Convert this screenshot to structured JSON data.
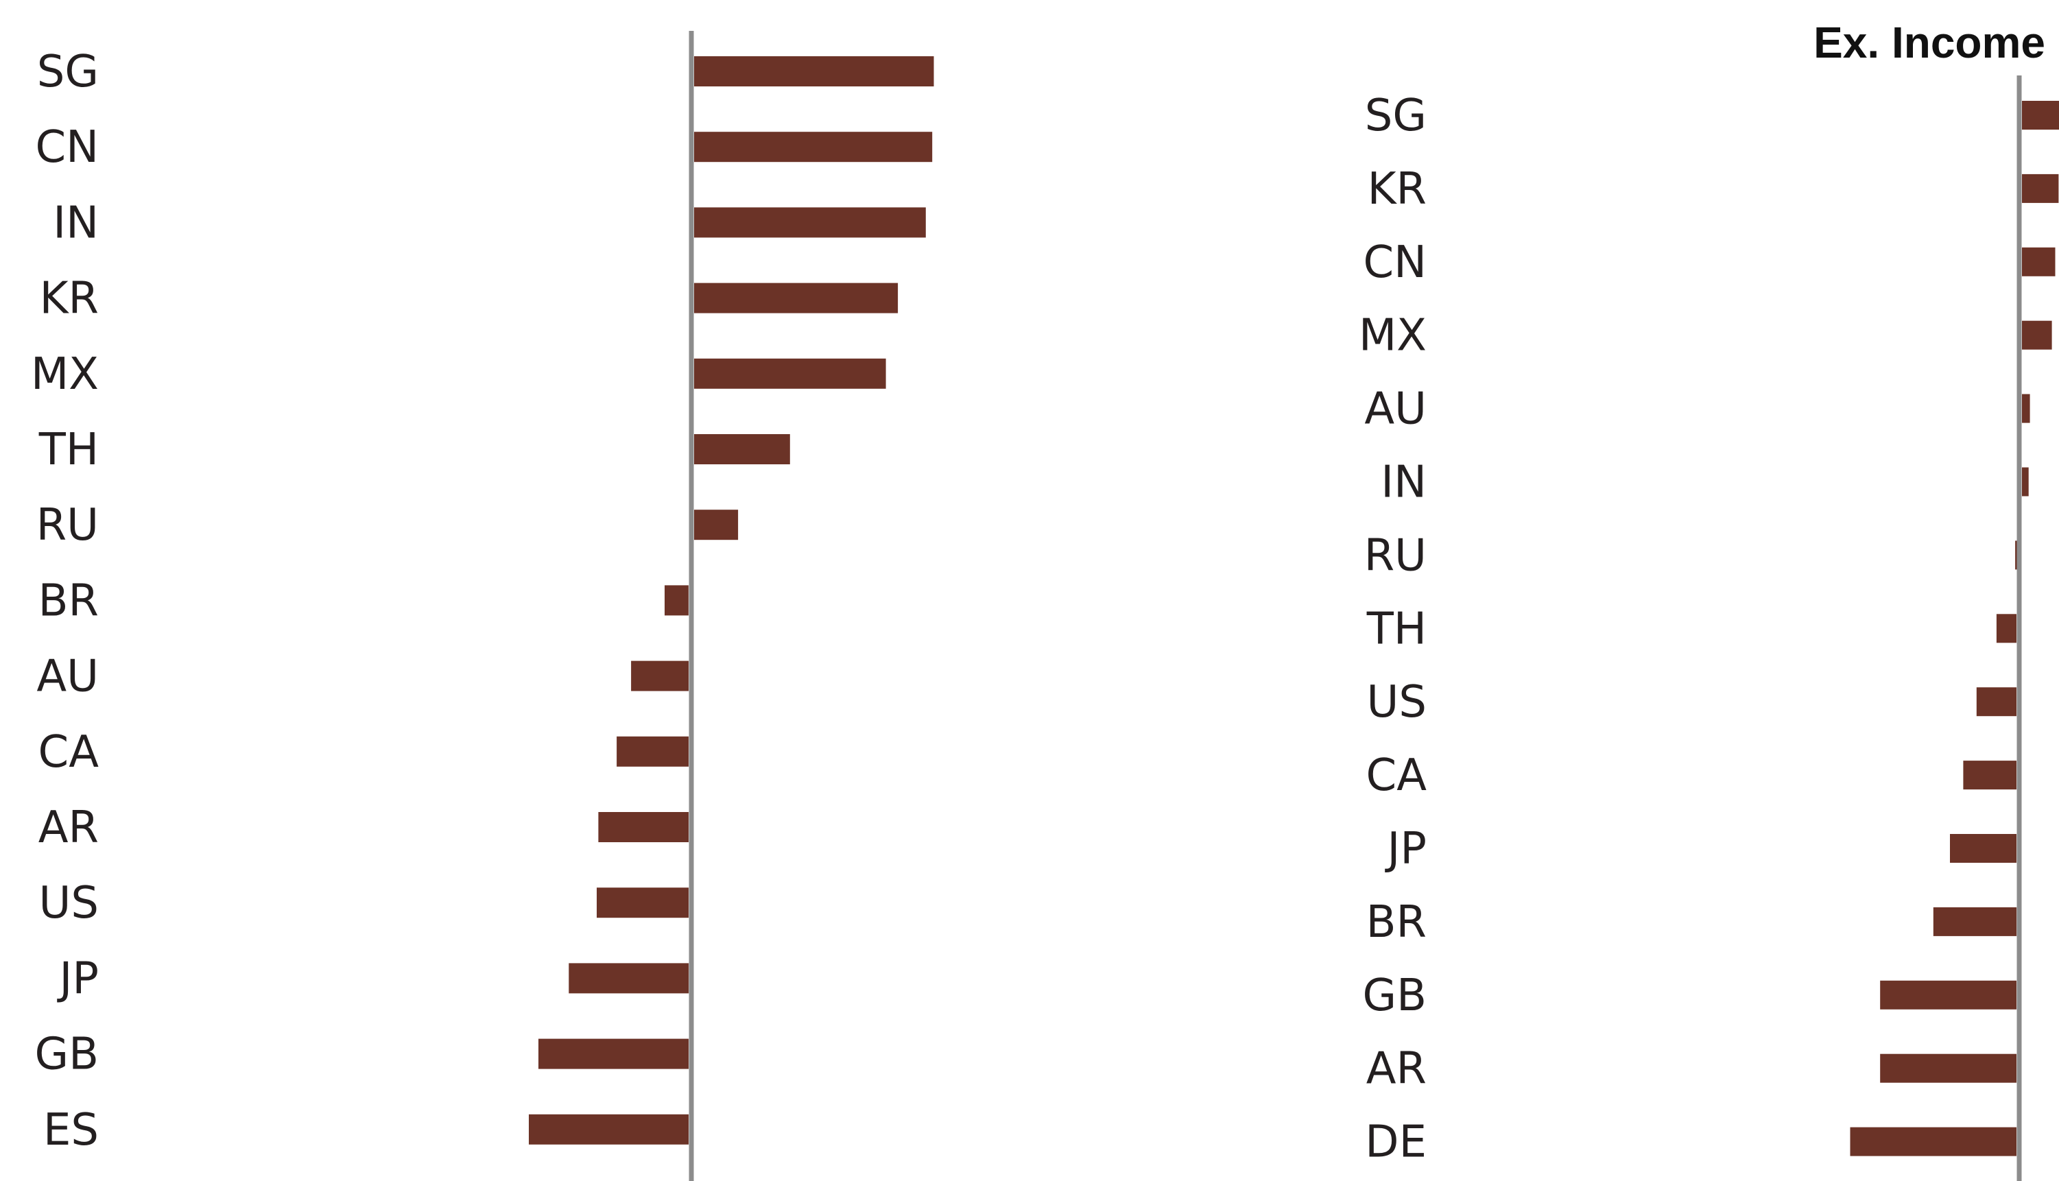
{
  "colors": {
    "bar": "#6b3327",
    "axis": "#8c8c8c",
    "text": "#231f20"
  },
  "chart_data": [
    {
      "type": "bar",
      "orientation": "horizontal",
      "title": "",
      "categories": [
        "SG",
        "CN",
        "IN",
        "KR",
        "MX",
        "TH",
        "RU",
        "BR",
        "AU",
        "CA",
        "AR",
        "US",
        "JP",
        "GB",
        "ES"
      ],
      "values": [
        3.0,
        2.98,
        2.9,
        2.55,
        2.4,
        1.2,
        0.55,
        -0.3,
        -0.72,
        -0.9,
        -1.13,
        -1.15,
        -1.5,
        -1.88,
        -2.0
      ],
      "xlim": [
        -2.5,
        3.5
      ],
      "xlabel": "",
      "ylabel": "",
      "grid": false,
      "legend": "none"
    },
    {
      "type": "bar",
      "orientation": "horizontal",
      "title": "Ex. Income",
      "categories": [
        "SG",
        "KR",
        "CN",
        "MX",
        "AU",
        "IN",
        "RU",
        "TH",
        "US",
        "CA",
        "JP",
        "BR",
        "GB",
        "AR",
        "DE"
      ],
      "values": [
        0.6,
        0.55,
        0.5,
        0.45,
        0.12,
        0.1,
        -0.02,
        -0.3,
        -0.6,
        -0.8,
        -1.0,
        -1.25,
        -2.05,
        -2.05,
        -2.5
      ],
      "xlim": [
        -3.0,
        0.6
      ],
      "xlabel": "",
      "ylabel": "",
      "grid": false,
      "legend": "none"
    }
  ]
}
